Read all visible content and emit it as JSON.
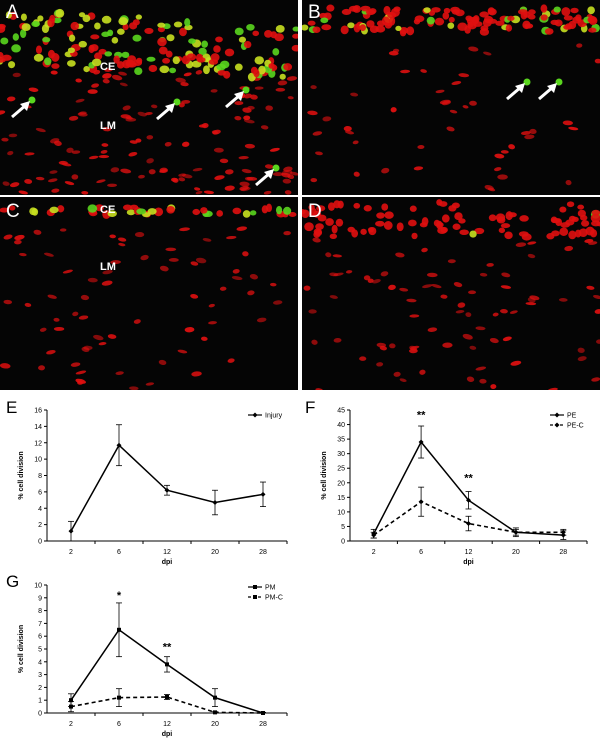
{
  "panels": {
    "A": {
      "label": "A",
      "tissue_labels": [
        "CE",
        "LM"
      ]
    },
    "B": {
      "label": "B"
    },
    "C": {
      "label": "C",
      "tissue_labels": [
        "CE",
        "LM"
      ]
    },
    "D": {
      "label": "D"
    }
  },
  "colors": {
    "nuclei": "#e01010",
    "proliferating": "#5ad61e",
    "background": "#050505",
    "arrow": "#ffffff"
  },
  "chart_data": [
    {
      "panel": "E",
      "type": "line",
      "xlabel": "dpi",
      "ylabel": "% cell division",
      "x": [
        "2",
        "6",
        "12",
        "20",
        "28"
      ],
      "ylim": [
        0,
        16
      ],
      "yticks": [
        0,
        2,
        4,
        6,
        8,
        10,
        12,
        14,
        16
      ],
      "legend_position": "top-right",
      "series": [
        {
          "name": "Injury",
          "values": [
            1.2,
            11.7,
            6.2,
            4.7,
            5.7
          ],
          "errors": [
            1.2,
            2.5,
            0.6,
            1.5,
            1.5
          ],
          "style": "solid",
          "marker": "diamond"
        }
      ],
      "annotations": []
    },
    {
      "panel": "F",
      "type": "line",
      "xlabel": "dpi",
      "ylabel": "% cell division",
      "x": [
        "2",
        "6",
        "12",
        "20",
        "28"
      ],
      "ylim": [
        0,
        45
      ],
      "yticks": [
        0,
        5,
        10,
        15,
        20,
        25,
        30,
        35,
        40,
        45
      ],
      "legend_position": "top-right",
      "series": [
        {
          "name": "PE",
          "values": [
            2.5,
            34,
            14,
            3,
            2
          ],
          "errors": [
            1.5,
            5.5,
            3,
            1.5,
            1.5
          ],
          "style": "solid",
          "marker": "diamond"
        },
        {
          "name": "PE-C",
          "values": [
            2,
            13.5,
            6,
            3,
            3
          ],
          "errors": [
            1,
            5,
            2.5,
            1,
            1
          ],
          "style": "dashed",
          "marker": "diamond"
        }
      ],
      "annotations": [
        {
          "x": "6",
          "text": "**",
          "y": 42
        },
        {
          "x": "12",
          "text": "**",
          "y": 20.5
        }
      ]
    },
    {
      "panel": "G",
      "type": "line",
      "xlabel": "dpi",
      "ylabel": "% cell division",
      "x": [
        "2",
        "6",
        "12",
        "20",
        "28"
      ],
      "ylim": [
        0,
        10
      ],
      "yticks": [
        0,
        1,
        2,
        3,
        4,
        5,
        6,
        7,
        8,
        9,
        10
      ],
      "legend_position": "top-right",
      "series": [
        {
          "name": "PM",
          "values": [
            1.0,
            6.5,
            3.8,
            1.2,
            0.0
          ],
          "errors": [
            0.5,
            2.1,
            0.6,
            0.7,
            0.05
          ],
          "style": "solid",
          "marker": "square"
        },
        {
          "name": "PM-C",
          "values": [
            0.5,
            1.2,
            1.25,
            0.05,
            0.0
          ],
          "errors": [
            0.4,
            0.7,
            0.2,
            0.05,
            0.03
          ],
          "style": "dashed",
          "marker": "square"
        }
      ],
      "annotations": [
        {
          "x": "6",
          "text": "*",
          "y": 8.9
        },
        {
          "x": "12",
          "text": "**",
          "y": 4.9
        }
      ]
    }
  ],
  "chart_labels": [
    "E",
    "F",
    "G"
  ]
}
